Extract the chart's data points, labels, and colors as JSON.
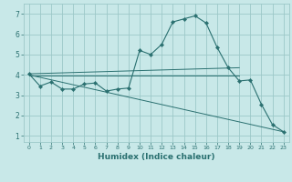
{
  "xlabel": "Humidex (Indice chaleur)",
  "xlim": [
    -0.5,
    23.5
  ],
  "ylim": [
    0.7,
    7.5
  ],
  "yticks": [
    1,
    2,
    3,
    4,
    5,
    6,
    7
  ],
  "xticks": [
    0,
    1,
    2,
    3,
    4,
    5,
    6,
    7,
    8,
    9,
    10,
    11,
    12,
    13,
    14,
    15,
    16,
    17,
    18,
    19,
    20,
    21,
    22,
    23
  ],
  "bg_color": "#c8e8e8",
  "line_color": "#2a7070",
  "grid_color": "#9cc8c8",
  "curve_x": [
    0,
    1,
    2,
    3,
    4,
    5,
    6,
    7,
    8,
    9,
    10,
    11,
    12,
    13,
    14,
    15,
    16,
    17,
    18,
    19,
    20,
    21,
    22,
    23
  ],
  "curve_y": [
    4.05,
    3.45,
    3.65,
    3.3,
    3.3,
    3.55,
    3.6,
    3.2,
    3.3,
    3.35,
    5.2,
    5.0,
    5.5,
    6.6,
    6.75,
    6.9,
    6.55,
    5.35,
    4.35,
    3.7,
    3.75,
    2.55,
    1.55,
    1.2
  ],
  "line1_x": [
    0,
    19
  ],
  "line1_y": [
    4.05,
    4.35
  ],
  "line2_x": [
    0,
    19
  ],
  "line2_y": [
    3.95,
    3.95
  ],
  "line3_x": [
    0,
    23
  ],
  "line3_y": [
    4.0,
    1.2
  ]
}
